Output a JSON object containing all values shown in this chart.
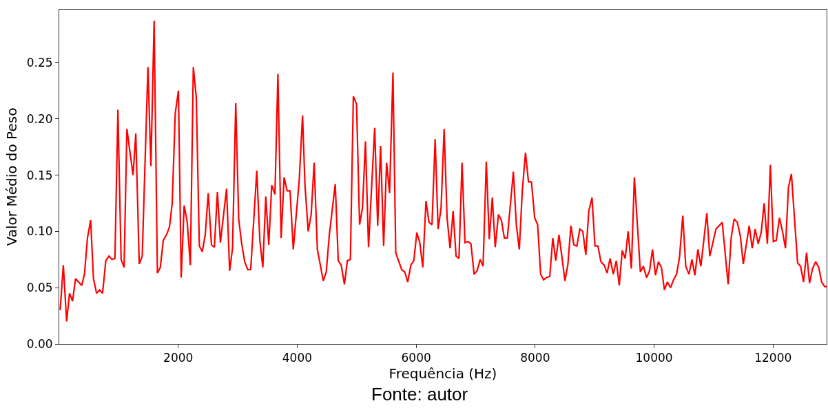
{
  "chart_data": {
    "type": "line",
    "xlabel": "Frequência (Hz)",
    "ylabel": "Valor Médio do Peso",
    "annotations": [
      "Fonte: autor"
    ],
    "xlim": [
      0,
      12900
    ],
    "ylim": [
      0,
      0.297
    ],
    "xticks": [
      2000,
      4000,
      6000,
      8000,
      10000,
      12000
    ],
    "yticks": [
      {
        "value": 0,
        "label": "0.00"
      },
      {
        "value": 0.05,
        "label": "0.05"
      },
      {
        "value": 0.1,
        "label": "0.10"
      },
      {
        "value": 0.15,
        "label": "0.15"
      },
      {
        "value": 0.2,
        "label": "0.20"
      },
      {
        "value": 0.25,
        "label": "0.25"
      }
    ],
    "marker": "none",
    "line_style": "solid",
    "series": [
      {
        "color": "#ff0000",
        "x": [
          15,
          69,
          124,
          173,
          223,
          274,
          378,
          424,
          474,
          528,
          575,
          628,
          678,
          728,
          783,
          836,
          887,
          936,
          986,
          1040,
          1090,
          1137,
          1241,
          1287,
          1345,
          1395,
          1491,
          1541,
          1595,
          1650,
          1699,
          1749,
          1803,
          1853,
          1899,
          1950,
          2004,
          2050,
          2100,
          2150,
          2204,
          2254,
          2304,
          2355,
          2405,
          2454,
          2505,
          2559,
          2608,
          2659,
          2709,
          2813,
          2864,
          2913,
          2967,
          3017,
          3067,
          3118,
          3168,
          3218,
          3321,
          3372,
          3422,
          3472,
          3522,
          3572,
          3626,
          3676,
          3730,
          3780,
          3830,
          3880,
          3934,
          4035,
          4090,
          4131,
          4185,
          4235,
          4285,
          4339,
          4439,
          4489,
          4540,
          4640,
          4690,
          4740,
          4794,
          4844,
          4894,
          4944,
          4998,
          5049,
          5098,
          5148,
          5199,
          5303,
          5353,
          5402,
          5453,
          5503,
          5553,
          5610,
          5657,
          5757,
          5807,
          5858,
          5911,
          5961,
          6011,
          6061,
          6111,
          6165,
          6216,
          6266,
          6319,
          6369,
          6419,
          6470,
          6520,
          6570,
          6621,
          6671,
          6720,
          6771,
          6821,
          6870,
          6921,
          6974,
          7025,
          7075,
          7125,
          7179,
          7229,
          7280,
          7329,
          7383,
          7433,
          7483,
          7533,
          7634,
          7684,
          7734,
          7784,
          7838,
          7888,
          7938,
          7992,
          8042,
          8092,
          8142,
          8193,
          8246,
          8297,
          8347,
          8401,
          8451,
          8501,
          8551,
          8601,
          8651,
          8701,
          8751,
          8801,
          8852,
          8902,
          8956,
          9006,
          9056,
          9106,
          9160,
          9210,
          9260,
          9314,
          9364,
          9414,
          9464,
          9514,
          9564,
          9618,
          9668,
          9769,
          9819,
          9873,
          9923,
          9973,
          10023,
          10073,
          10123,
          10173,
          10223,
          10277,
          10327,
          10378,
          10427,
          10482,
          10532,
          10586,
          10636,
          10686,
          10736,
          10786,
          10886,
          10936,
          11040,
          11145,
          11245,
          11295,
          11345,
          11399,
          11449,
          11499,
          11599,
          11649,
          11699,
          11749,
          11800,
          11850,
          11904,
          11954,
          12004,
          12054,
          12107,
          12158,
          12208,
          12258,
          12308,
          12412,
          12462,
          12512,
          12563,
          12613,
          12663,
          12717,
          12767,
          12817,
          12867,
          12900
        ],
        "values": [
          0.03,
          0.07,
          0.02,
          0.045,
          0.038,
          0.058,
          0.052,
          0.062,
          0.094,
          0.11,
          0.058,
          0.045,
          0.048,
          0.045,
          0.074,
          0.078,
          0.075,
          0.076,
          0.208,
          0.075,
          0.068,
          0.191,
          0.15,
          0.187,
          0.071,
          0.078,
          0.246,
          0.158,
          0.287,
          0.063,
          0.068,
          0.092,
          0.097,
          0.104,
          0.125,
          0.205,
          0.225,
          0.059,
          0.123,
          0.109,
          0.07,
          0.246,
          0.219,
          0.087,
          0.082,
          0.097,
          0.134,
          0.088,
          0.086,
          0.135,
          0.09,
          0.138,
          0.065,
          0.085,
          0.214,
          0.111,
          0.089,
          0.073,
          0.066,
          0.066,
          0.154,
          0.092,
          0.068,
          0.131,
          0.088,
          0.141,
          0.133,
          0.24,
          0.094,
          0.148,
          0.136,
          0.136,
          0.084,
          0.146,
          0.203,
          0.141,
          0.1,
          0.115,
          0.161,
          0.084,
          0.056,
          0.064,
          0.097,
          0.142,
          0.074,
          0.07,
          0.053,
          0.074,
          0.075,
          0.22,
          0.213,
          0.106,
          0.121,
          0.18,
          0.086,
          0.192,
          0.105,
          0.176,
          0.087,
          0.161,
          0.134,
          0.241,
          0.081,
          0.066,
          0.064,
          0.055,
          0.07,
          0.074,
          0.099,
          0.09,
          0.068,
          0.127,
          0.108,
          0.106,
          0.182,
          0.102,
          0.121,
          0.191,
          0.112,
          0.085,
          0.118,
          0.078,
          0.076,
          0.161,
          0.09,
          0.091,
          0.089,
          0.062,
          0.065,
          0.075,
          0.069,
          0.162,
          0.093,
          0.13,
          0.086,
          0.115,
          0.11,
          0.094,
          0.094,
          0.153,
          0.106,
          0.084,
          0.136,
          0.17,
          0.144,
          0.144,
          0.112,
          0.106,
          0.062,
          0.057,
          0.059,
          0.06,
          0.094,
          0.074,
          0.097,
          0.077,
          0.056,
          0.071,
          0.105,
          0.088,
          0.087,
          0.102,
          0.1,
          0.079,
          0.118,
          0.13,
          0.087,
          0.087,
          0.073,
          0.07,
          0.063,
          0.076,
          0.062,
          0.074,
          0.052,
          0.083,
          0.076,
          0.1,
          0.067,
          0.148,
          0.064,
          0.069,
          0.059,
          0.065,
          0.084,
          0.061,
          0.073,
          0.068,
          0.048,
          0.055,
          0.05,
          0.057,
          0.062,
          0.077,
          0.114,
          0.069,
          0.062,
          0.075,
          0.061,
          0.084,
          0.069,
          0.116,
          0.078,
          0.102,
          0.108,
          0.053,
          0.094,
          0.111,
          0.108,
          0.096,
          0.071,
          0.105,
          0.085,
          0.102,
          0.089,
          0.099,
          0.125,
          0.089,
          0.159,
          0.091,
          0.092,
          0.112,
          0.1,
          0.085,
          0.139,
          0.151,
          0.072,
          0.069,
          0.055,
          0.081,
          0.054,
          0.067,
          0.073,
          0.068,
          0.055,
          0.051,
          0.051
        ]
      }
    ]
  }
}
